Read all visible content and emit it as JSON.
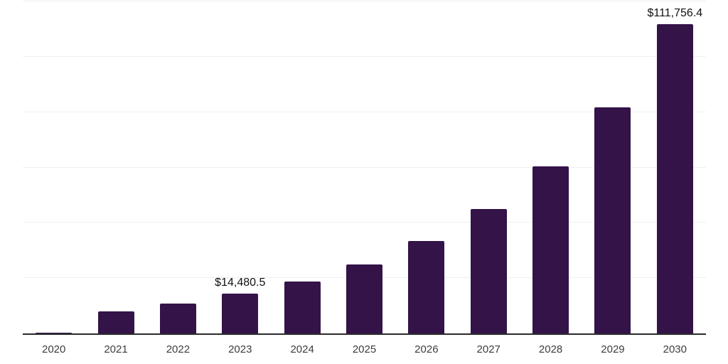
{
  "chart_data": {
    "type": "bar",
    "title": "",
    "xlabel": "",
    "ylabel": "",
    "categories": [
      "2020",
      "2021",
      "2022",
      "2023",
      "2024",
      "2025",
      "2026",
      "2027",
      "2028",
      "2029",
      "2030"
    ],
    "values": [
      250,
      7900,
      10800,
      14480.5,
      18700,
      25000,
      33500,
      45000,
      60300,
      81800,
      111756.4
    ],
    "data_labels": [
      "",
      "",
      "",
      "$14,480.5",
      "",
      "",
      "",
      "",
      "",
      "",
      "$111,756.4"
    ],
    "ylim": [
      0,
      120000
    ],
    "gridline_interval": 20000,
    "grid": true,
    "legend": false,
    "y_axis_labels_shown": false,
    "colors": {
      "bar": "#341348",
      "gridline": "#efefef",
      "axis_line": "#2b2b2b",
      "tick_label": "#3d3d3d",
      "data_label": "#101010",
      "background": "#ffffff"
    }
  }
}
